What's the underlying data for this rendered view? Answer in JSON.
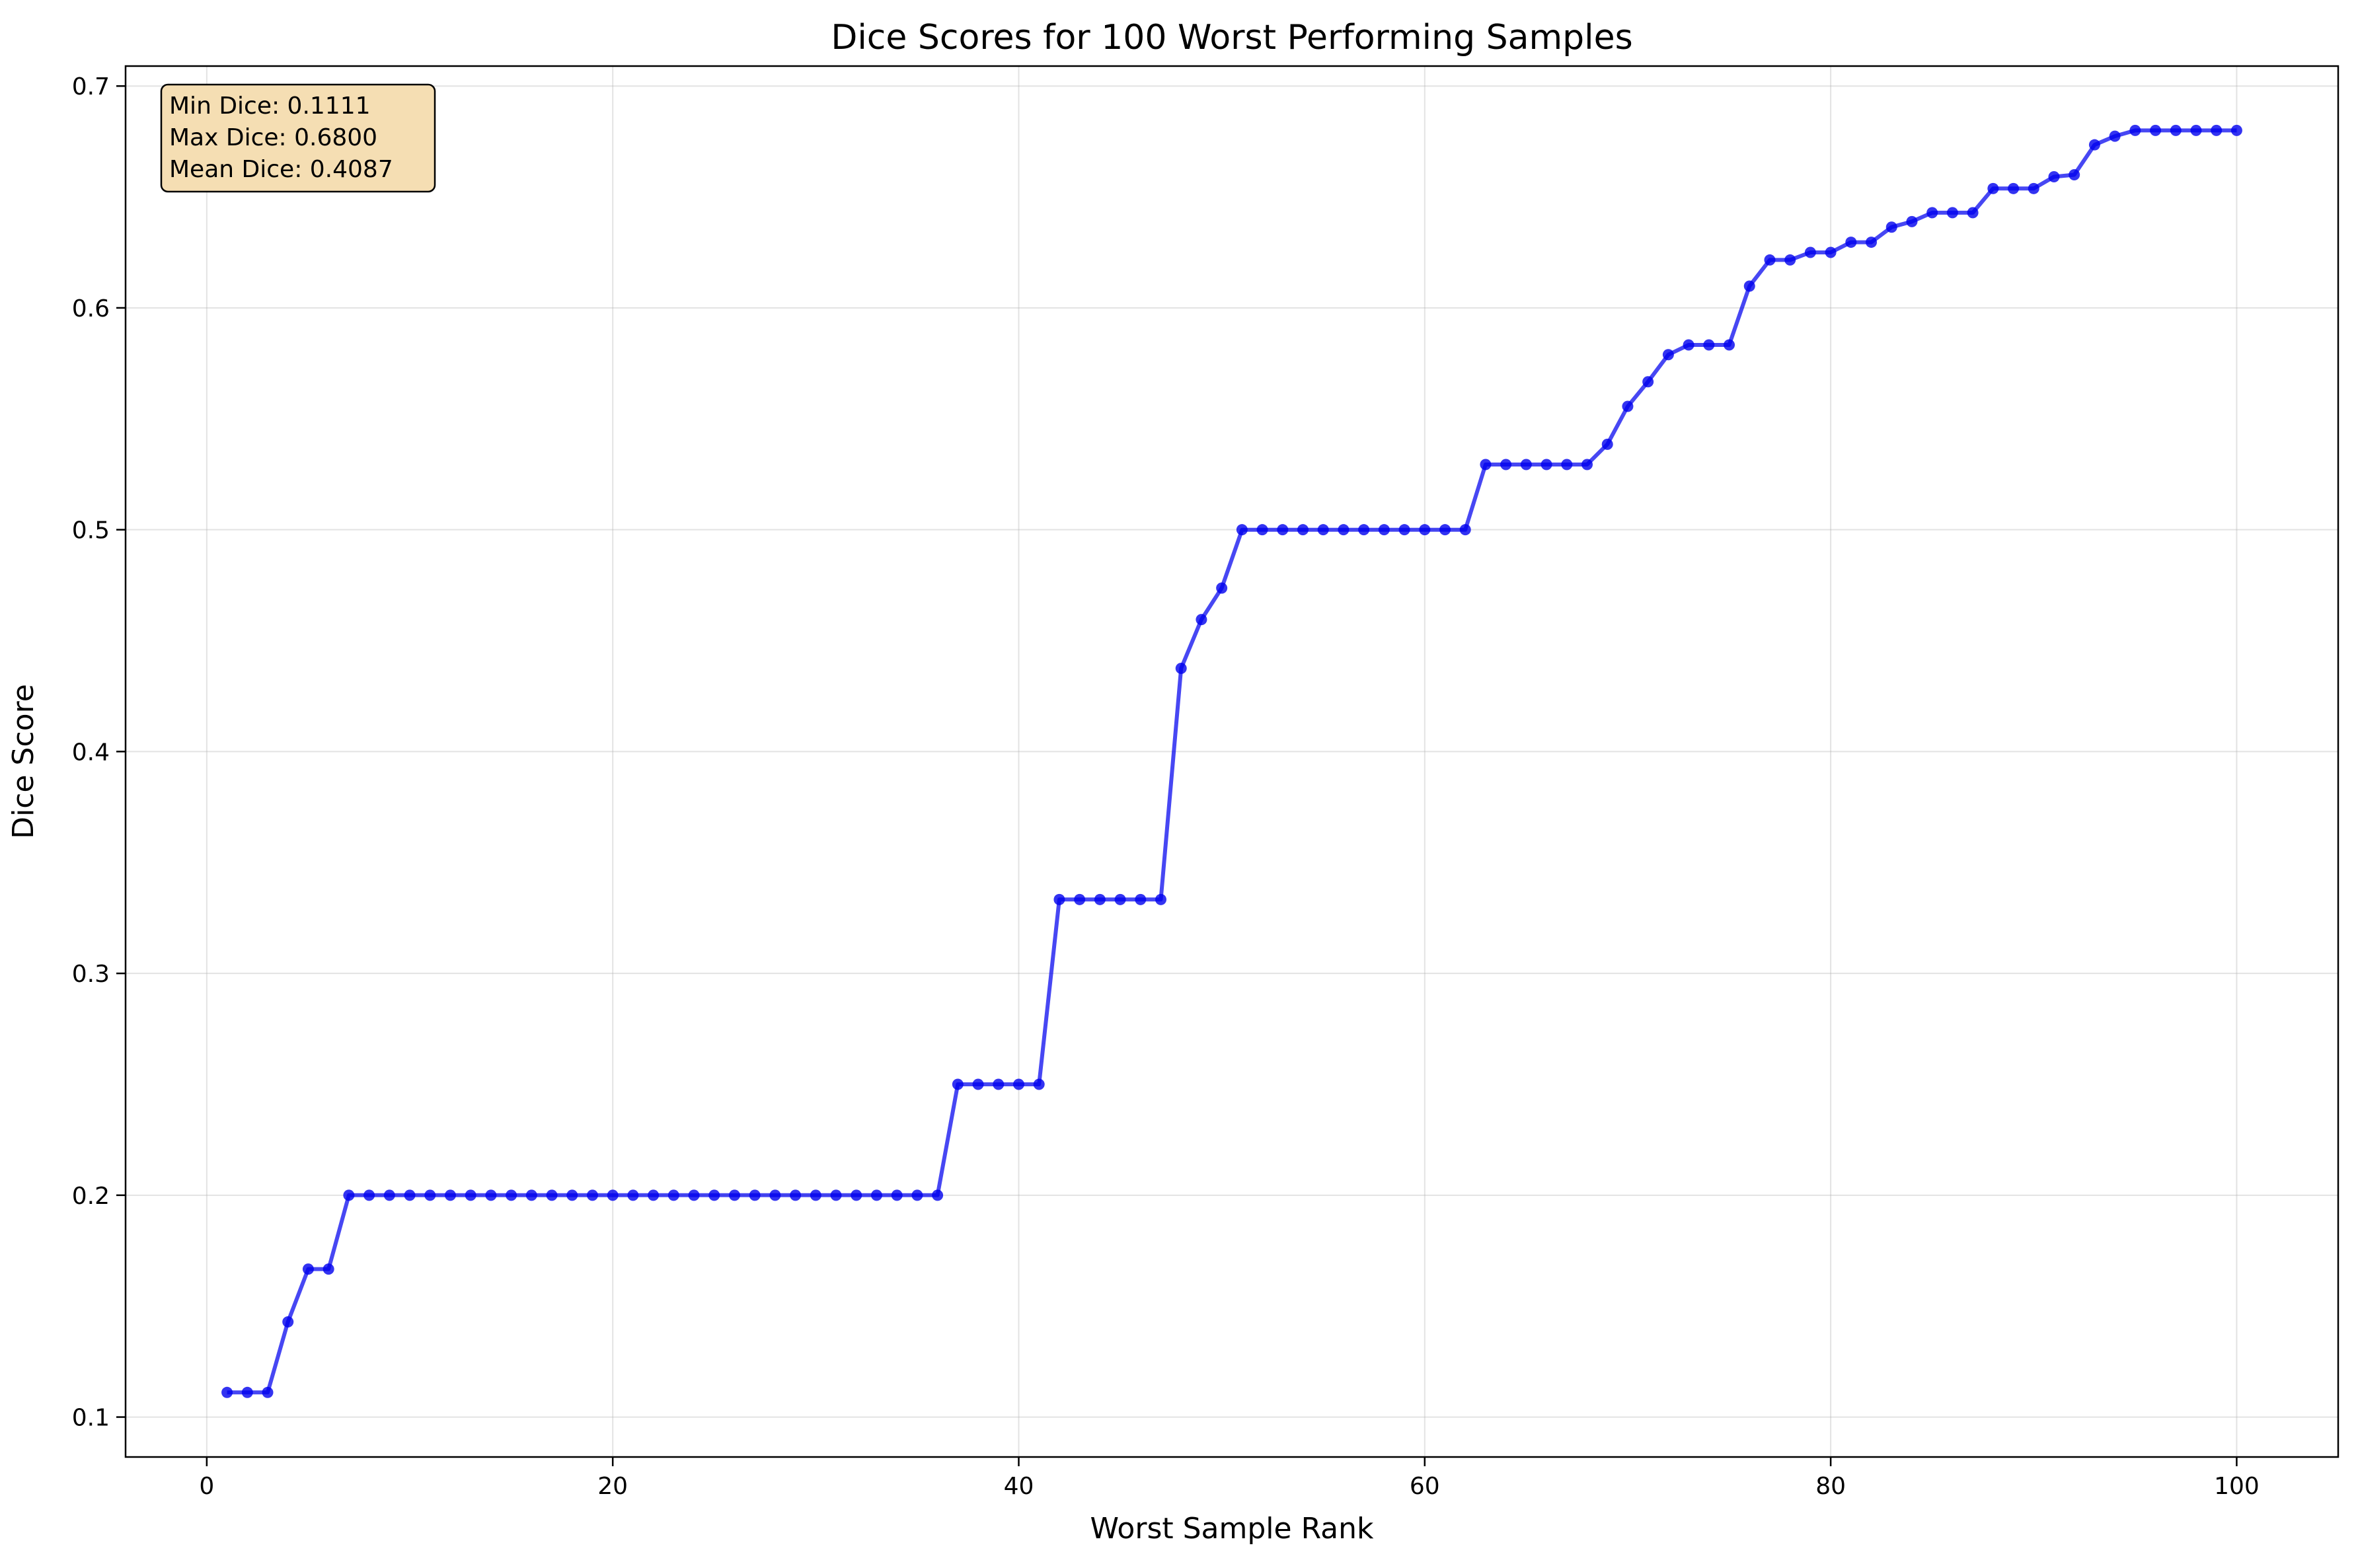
{
  "chart_data": {
    "type": "line",
    "title": "Dice Scores for 100 Worst Performing Samples",
    "xlabel": "Worst Sample Rank",
    "ylabel": "Dice Score",
    "xlim": [
      -4,
      105
    ],
    "ylim": [
      0.082,
      0.709
    ],
    "xticks": [
      0,
      20,
      40,
      60,
      80,
      100
    ],
    "yticks": [
      0.1,
      0.2,
      0.3,
      0.4,
      0.5,
      0.6,
      0.7
    ],
    "grid": true,
    "colors": {
      "line": "#0000ee",
      "marker": "#0000ee",
      "box_fill": "#f5deb3",
      "box_edge": "#000000"
    },
    "stats_box": {
      "placement": "top-left",
      "lines": [
        "Min Dice: 0.1111",
        "Max Dice: 0.6800",
        "Mean Dice: 0.4087"
      ]
    },
    "series": [
      {
        "x": [
          1,
          2,
          3,
          4,
          5,
          6,
          7,
          8,
          9,
          10,
          11,
          12,
          13,
          14,
          15,
          16,
          17,
          18,
          19,
          20,
          21,
          22,
          23,
          24,
          25,
          26,
          27,
          28,
          29,
          30,
          31,
          32,
          33,
          34,
          35,
          36,
          37,
          38,
          39,
          40,
          41,
          42,
          43,
          44,
          45,
          46,
          47,
          48,
          49,
          50,
          51,
          52,
          53,
          54,
          55,
          56,
          57,
          58,
          59,
          60,
          61,
          62,
          63,
          64,
          65,
          66,
          67,
          68,
          69,
          70,
          71,
          72,
          73,
          74,
          75,
          76,
          77,
          78,
          79,
          80,
          81,
          82,
          83,
          84,
          85,
          86,
          87,
          88,
          89,
          90,
          91,
          92,
          93,
          94,
          95,
          96,
          97,
          98,
          99,
          100
        ],
        "values": [
          0.1111,
          0.1111,
          0.1111,
          0.1429,
          0.1667,
          0.1667,
          0.2,
          0.2,
          0.2,
          0.2,
          0.2,
          0.2,
          0.2,
          0.2,
          0.2,
          0.2,
          0.2,
          0.2,
          0.2,
          0.2,
          0.2,
          0.2,
          0.2,
          0.2,
          0.2,
          0.2,
          0.2,
          0.2,
          0.2,
          0.2,
          0.2,
          0.2,
          0.2,
          0.2,
          0.2,
          0.2,
          0.25,
          0.25,
          0.25,
          0.25,
          0.25,
          0.3333,
          0.3333,
          0.3333,
          0.3333,
          0.3333,
          0.3333,
          0.4375,
          0.4595,
          0.4737,
          0.5,
          0.5,
          0.5,
          0.5,
          0.5,
          0.5,
          0.5,
          0.5,
          0.5,
          0.5,
          0.5,
          0.5,
          0.5294,
          0.5294,
          0.5294,
          0.5294,
          0.5294,
          0.5294,
          0.5385,
          0.5556,
          0.5667,
          0.5789,
          0.5833,
          0.5833,
          0.5833,
          0.6098,
          0.6216,
          0.6216,
          0.625,
          0.625,
          0.6296,
          0.6296,
          0.6364,
          0.6389,
          0.6429,
          0.6429,
          0.6429,
          0.6538,
          0.6538,
          0.6538,
          0.6591,
          0.66,
          0.6735,
          0.6774,
          0.68,
          0.68,
          0.68,
          0.68,
          0.68,
          0.68
        ]
      }
    ]
  }
}
